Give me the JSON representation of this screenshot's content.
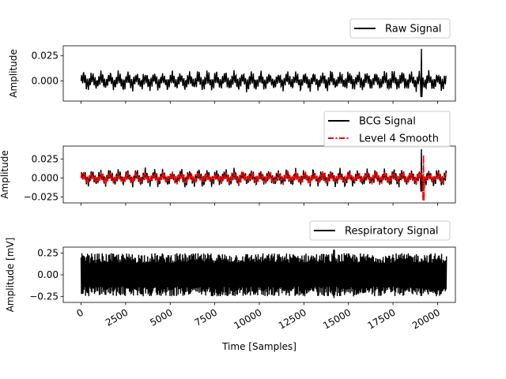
{
  "chart_data": [
    {
      "type": "line",
      "ylabel": "Amplitude",
      "ylim": [
        -0.02,
        0.035
      ],
      "yticks": [
        0.025,
        0.0
      ],
      "ytick_labels": [
        "0.025",
        "0.000"
      ],
      "xlim": [
        -1000,
        21000
      ],
      "legend": {
        "placement": "upper-right-outside",
        "entries": [
          "Raw Signal"
        ]
      },
      "series": [
        {
          "name": "Raw Signal",
          "color": "#000000",
          "style": "solid",
          "x_start": 0,
          "x_end": 20500,
          "envelope": [
            -0.012,
            0.012
          ],
          "peak": {
            "x": 19100,
            "y": 0.032,
            "y_min": -0.016
          }
        }
      ]
    },
    {
      "type": "line",
      "ylabel": "Amplitude",
      "ylim": [
        -0.033,
        0.042
      ],
      "yticks": [
        0.025,
        0.0,
        -0.025
      ],
      "ytick_labels": [
        "0.025",
        "0.000",
        "−0.025"
      ],
      "xlim": [
        -1000,
        21000
      ],
      "legend": {
        "placement": "upper-right-outside",
        "entries": [
          "BCG Signal",
          "Level 4 Smooth"
        ]
      },
      "series": [
        {
          "name": "BCG Signal",
          "color": "#000000",
          "style": "solid",
          "x_start": 0,
          "x_end": 20500,
          "envelope": [
            -0.014,
            0.014
          ],
          "peak": {
            "x": 19100,
            "y": 0.038,
            "y_min": -0.018
          }
        },
        {
          "name": "Level 4 Smooth",
          "color": "#ff0000",
          "style": "dashdot",
          "x_start": 0,
          "x_end": 20500,
          "envelope": [
            -0.01,
            0.01
          ],
          "peak": {
            "x": 19200,
            "y": 0.03,
            "y_min": -0.03
          }
        }
      ]
    },
    {
      "type": "line",
      "xlabel": "Time [Samples]",
      "ylabel": "Amplitude [mV]",
      "ylim": [
        -0.32,
        0.32
      ],
      "yticks": [
        0.25,
        0.0,
        -0.25
      ],
      "ytick_labels": [
        "0.25",
        "0.00",
        "−0.25"
      ],
      "xlim": [
        -1000,
        21000
      ],
      "xticks": [
        0,
        2500,
        5000,
        7500,
        10000,
        12500,
        15000,
        17500,
        20000
      ],
      "xtick_labels": [
        "0",
        "2500",
        "5000",
        "7500",
        "10000",
        "12500",
        "15000",
        "17500",
        "20000"
      ],
      "legend": {
        "placement": "upper-right-outside",
        "entries": [
          "Respiratory Signal"
        ]
      },
      "series": [
        {
          "name": "Respiratory Signal",
          "color": "#000000",
          "style": "solid",
          "x_start": 0,
          "x_end": 20500,
          "envelope": [
            -0.25,
            0.25
          ],
          "peak": {
            "x": 14200,
            "y": 0.29,
            "y_min": -0.27
          }
        }
      ]
    }
  ]
}
